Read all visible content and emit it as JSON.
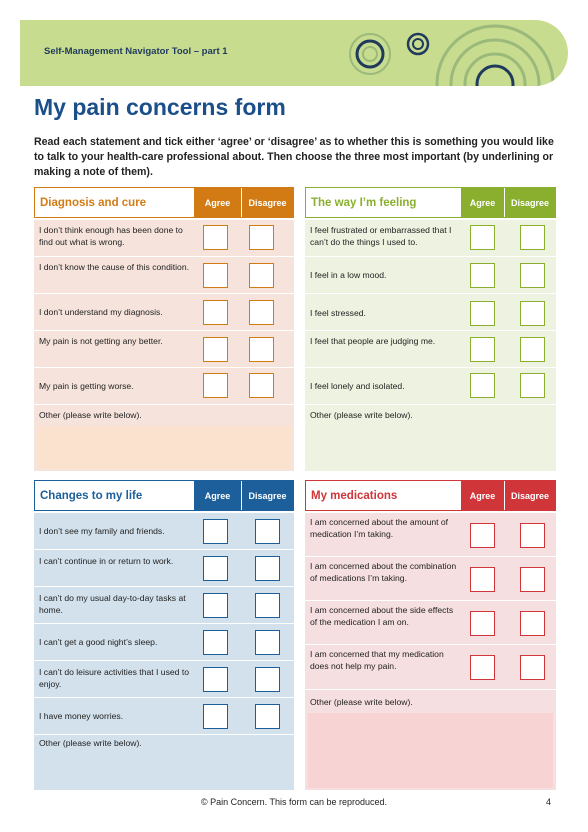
{
  "header": {
    "title": "Self-Management Navigator Tool – part 1"
  },
  "page_title": "My pain concerns form",
  "intro": "Read each statement and tick either ‘agree’ or ‘disagree’ as to whether this is something you would like to talk to your health-care professional about. Then choose the three most important (by underlining or making a note of them).",
  "colors": {
    "orange": "#d27b14",
    "orange_bg": "#f6e4dc",
    "orange_write": "#fbe2cf",
    "green": "#8aaf2f",
    "green_bg": "#eef2e0",
    "blue": "#1c5f9b",
    "blue_bg": "#d2e1ec",
    "red": "#cf3539",
    "red_bg": "#f6dfe0",
    "red_write": "#f7d3d4",
    "title_blue": "#1b4f8a"
  },
  "panels": [
    {
      "title": "Diagnosis and cure",
      "agree": "Agree",
      "disagree": "Disagree",
      "items": [
        "I don’t think enough has been done to find out what is wrong.",
        "I don’t know the cause of this condition.",
        "I don’t understand my diagnosis.",
        "My pain is not getting any better.",
        "My pain is getting worse."
      ],
      "other": "Other (please write below)."
    },
    {
      "title": "The way I’m feeling",
      "agree": "Agree",
      "disagree": "Disagree",
      "items": [
        "I feel frustrated or embarrassed that I can’t do the things I used to.",
        "I feel in a low mood.",
        "I feel stressed.",
        "I feel that people are judging me.",
        "I feel lonely and isolated."
      ],
      "other": "Other (please write below)."
    },
    {
      "title": "Changes to my life",
      "agree": "Agree",
      "disagree": "Disagree",
      "items": [
        "I don’t see my family and friends.",
        "I can’t continue in or return to work.",
        "I can’t do my usual day-to-day tasks at home.",
        "I can’t get a good night’s sleep.",
        "I can’t do leisure activities that I used to enjoy.",
        "I have money worries."
      ],
      "other": "Other (please write below)."
    },
    {
      "title": "My medications",
      "agree": "Agree",
      "disagree": "Disagree",
      "items": [
        "I am concerned about the amount of medication I’m taking.",
        "I am concerned about the combination of medications I’m taking.",
        "I am concerned about the side effects of the medication I am on.",
        "I am concerned that my medication does not help my pain."
      ],
      "other": "Other (please write below)."
    }
  ],
  "footer": "© Pain Concern. This form can be reproduced.",
  "page_number": "4"
}
